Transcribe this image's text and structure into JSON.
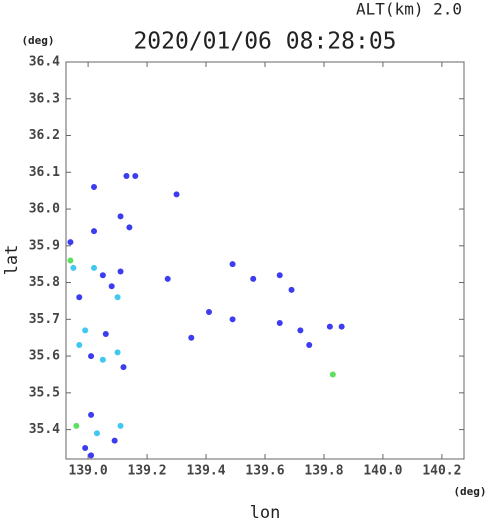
{
  "chart_data": {
    "type": "scatter",
    "title": "2020/01/06 08:28:05",
    "subtitle": "ALT(km)  2.0",
    "y_unit": "(deg)",
    "x_unit": "(deg)",
    "xlabel": "lon",
    "ylabel": "lat",
    "xlim": [
      138.925,
      140.275
    ],
    "ylim": [
      35.32,
      36.4
    ],
    "xticks": [
      {
        "value": 139.0,
        "label": "139.0"
      },
      139.2,
      139.4,
      139.6,
      139.8,
      {
        "value": 140.0,
        "label": "140.0"
      },
      140.2
    ],
    "yticks": [
      36.4,
      36.3,
      36.2,
      36.1,
      {
        "value": 36.0,
        "label": "36.0"
      },
      35.9,
      35.8,
      35.7,
      35.6,
      35.5,
      35.4
    ],
    "series": [
      {
        "color": "#3c3cf0",
        "x": [
          139.02,
          139.13,
          139.16,
          139.11,
          139.14,
          139.02,
          138.94,
          139.05,
          139.11,
          139.08,
          138.97,
          139.06,
          139.01,
          139.12,
          139.3,
          139.27,
          139.35,
          139.49,
          139.56,
          139.65,
          139.69,
          139.41,
          139.49,
          139.65,
          139.72,
          139.75,
          139.82,
          139.86,
          139.09,
          138.99,
          139.01,
          139.01
        ],
        "y": [
          36.06,
          36.09,
          36.09,
          35.98,
          35.95,
          35.94,
          35.91,
          35.82,
          35.83,
          35.79,
          35.76,
          35.66,
          35.6,
          35.57,
          36.04,
          35.81,
          35.65,
          35.85,
          35.81,
          35.82,
          35.78,
          35.72,
          35.7,
          35.69,
          35.67,
          35.63,
          35.68,
          35.68,
          35.37,
          35.35,
          35.33,
          35.44
        ]
      },
      {
        "color": "#40c8f0",
        "x": [
          138.95,
          139.02,
          139.1,
          138.99,
          138.97,
          139.05,
          139.1,
          139.03,
          139.11
        ],
        "y": [
          35.84,
          35.84,
          35.76,
          35.67,
          35.63,
          35.59,
          35.61,
          35.39,
          35.41
        ]
      },
      {
        "color": "#5ee05e",
        "x": [
          138.94,
          139.83,
          138.96
        ],
        "y": [
          35.86,
          35.55,
          35.41
        ]
      }
    ]
  }
}
